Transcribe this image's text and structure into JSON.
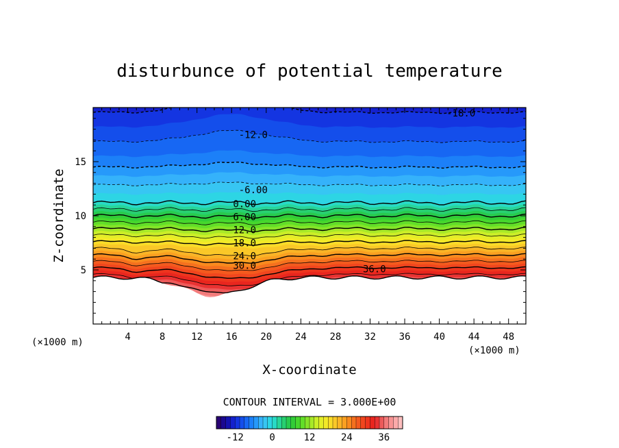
{
  "chart_data": {
    "type": "contour",
    "title": "disturbunce of potential temperature",
    "xlabel": "X-coordinate",
    "ylabel": "Z-coordinate",
    "x_unit": "(×1000 m)",
    "y_unit": "(×1000 m)",
    "xlim": [
      0,
      50
    ],
    "ylim": [
      0,
      20
    ],
    "x_ticks": [
      4,
      8,
      12,
      16,
      20,
      24,
      28,
      32,
      36,
      40,
      44,
      48
    ],
    "y_ticks": [
      5,
      10,
      15
    ],
    "contour_interval_text": "CONTOUR INTERVAL = 3.000E+00",
    "contour_interval": 3.0,
    "contour_labels": [
      {
        "text": "-18.0",
        "x": 42.5,
        "z": 19.5
      },
      {
        "text": "-12.0",
        "x": 18.5,
        "z": 17.5
      },
      {
        "text": "-6.00",
        "x": 18.5,
        "z": 12.4
      },
      {
        "text": "0.00",
        "x": 17.5,
        "z": 11.1
      },
      {
        "text": "6.00",
        "x": 17.5,
        "z": 9.9
      },
      {
        "text": "12.0",
        "x": 17.5,
        "z": 8.7
      },
      {
        "text": "18.0",
        "x": 17.5,
        "z": 7.5
      },
      {
        "text": "24.0",
        "x": 17.5,
        "z": 6.3
      },
      {
        "text": "30.0",
        "x": 17.5,
        "z": 5.4
      },
      {
        "text": "36.0",
        "x": 32.5,
        "z": 5.1
      }
    ],
    "colorbar": {
      "range": [
        -18,
        42
      ],
      "tick_values": [
        -12,
        0,
        12,
        24,
        36
      ],
      "tick_labels": [
        "-12",
        "0",
        "12",
        "24",
        "36"
      ]
    },
    "field": {
      "bottom_terrain_z": 4.3,
      "mound_center_x": 14,
      "mound_depth_z": 1.7,
      "cold_values_top": -18,
      "warm_values_bottom": 39
    }
  }
}
